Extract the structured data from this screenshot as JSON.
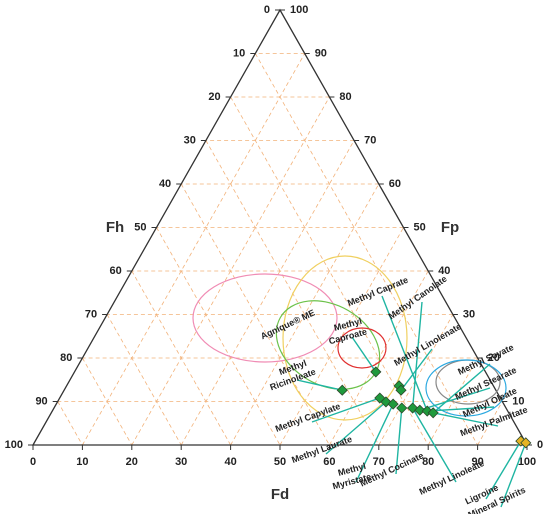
{
  "chart_data": {
    "type": "ternary",
    "axis_labels": {
      "bottom": "Fd",
      "left": "Fh",
      "right": "Fp"
    },
    "fd_ticks": [
      0,
      10,
      20,
      30,
      40,
      50,
      60,
      70,
      80,
      90,
      100
    ],
    "fh_ticks": [
      0,
      10,
      20,
      30,
      40,
      50,
      60,
      70,
      80,
      90,
      100
    ],
    "fp_ticks": [
      0,
      10,
      20,
      30,
      40,
      50,
      60,
      70,
      80,
      90,
      100
    ],
    "grid": true,
    "series": [
      {
        "color": "#1f9a3c",
        "fd": [
          61.0,
          67.3,
          68.2,
          56.3,
          64.8,
          66.5,
          68.2,
          70.4,
          72.6,
          74.3,
          75.9,
          77.3
        ],
        "fp": [
          16.8,
          13.6,
          12.6,
          12.6,
          10.8,
          9.9,
          9.4,
          8.5,
          8.5,
          8.0,
          7.8,
          7.4
        ]
      },
      {
        "color": "#e6b422",
        "fd": [
          98.3,
          99.5
        ],
        "fp": [
          0.9,
          0.5
        ]
      }
    ],
    "annotations": [
      [
        "Methyl Caprate"
      ],
      [
        "Methyl Canolate"
      ],
      [
        "Methyl Linolenate"
      ],
      [
        "Methyl Soyate"
      ],
      [
        "Methyl Stearate"
      ],
      [
        "Methyl Oleate"
      ],
      [
        "Methyl Palmitate"
      ],
      [
        "Agnique® ME"
      ],
      [
        "Methyl",
        "Caproate"
      ],
      [
        "Methyl",
        "Ricinoleate"
      ],
      [
        "Methyl Capylate"
      ],
      [
        "Methyl Laurate"
      ],
      [
        "Methyl",
        "Myristate"
      ],
      [
        "Methyl Cocinate"
      ],
      [
        "Methyl Linoleate"
      ],
      [
        "Ligroine"
      ],
      [
        "Mineral Spirits"
      ]
    ]
  }
}
